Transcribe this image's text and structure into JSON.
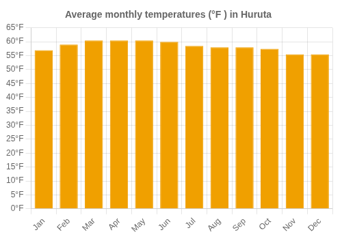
{
  "chart_data": {
    "type": "bar",
    "title": "Average monthly temperatures (°F ) in Huruta",
    "categories": [
      "Jan",
      "Feb",
      "Mar",
      "Apr",
      "May",
      "Jun",
      "Jul",
      "Aug",
      "Sep",
      "Oct",
      "Nov",
      "Dec"
    ],
    "values": [
      57,
      59,
      60.5,
      60.5,
      60.5,
      60,
      58.5,
      58,
      58,
      57.5,
      55.5,
      55.5
    ],
    "color": "#F0A000",
    "ylim": [
      0,
      65
    ],
    "yticks": [
      {
        "value": 0,
        "label": "0°F"
      },
      {
        "value": 5,
        "label": "5°F"
      },
      {
        "value": 10,
        "label": "10°F"
      },
      {
        "value": 15,
        "label": "15°F"
      },
      {
        "value": 20,
        "label": "20°F"
      },
      {
        "value": 25,
        "label": "25°F"
      },
      {
        "value": 30,
        "label": "30°F"
      },
      {
        "value": 35,
        "label": "35°F"
      },
      {
        "value": 40,
        "label": "40°F"
      },
      {
        "value": 45,
        "label": "45°F"
      },
      {
        "value": 50,
        "label": "50°F"
      },
      {
        "value": 55,
        "label": "55°F"
      },
      {
        "value": 60,
        "label": "60°F"
      },
      {
        "value": 65,
        "label": "65°F"
      }
    ],
    "grid": true
  }
}
